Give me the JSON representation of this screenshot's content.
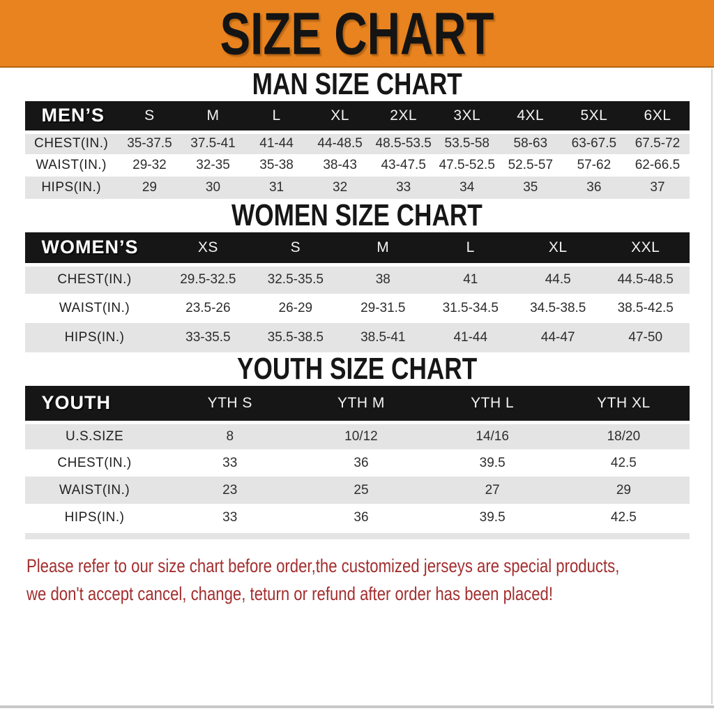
{
  "banner": {
    "title": "SIZE CHART"
  },
  "sections": [
    {
      "id": "men",
      "heading": "MAN SIZE CHART",
      "table_label": "MEN’S",
      "columns": [
        "S",
        "M",
        "L",
        "XL",
        "2XL",
        "3XL",
        "4XL",
        "5XL",
        "6XL"
      ],
      "rows": [
        {
          "label": "CHEST(IN.)",
          "values": [
            "35-37.5",
            "37.5-41",
            "41-44",
            "44-48.5",
            "48.5-53.5",
            "53.5-58",
            "58-63",
            "63-67.5",
            "67.5-72"
          ]
        },
        {
          "label": "WAIST(IN.)",
          "values": [
            "29-32",
            "32-35",
            "35-38",
            "38-43",
            "43-47.5",
            "47.5-52.5",
            "52.5-57",
            "57-62",
            "62-66.5"
          ]
        },
        {
          "label": "HIPS(IN.)",
          "values": [
            "29",
            "30",
            "31",
            "32",
            "33",
            "34",
            "35",
            "36",
            "37"
          ]
        }
      ]
    },
    {
      "id": "women",
      "heading": "WOMEN SIZE CHART",
      "table_label": "WOMEN’S",
      "columns": [
        "XS",
        "S",
        "M",
        "L",
        "XL",
        "XXL"
      ],
      "rows": [
        {
          "label": "CHEST(IN.)",
          "values": [
            "29.5-32.5",
            "32.5-35.5",
            "38",
            "41",
            "44.5",
            "44.5-48.5"
          ]
        },
        {
          "label": "WAIST(IN.)",
          "values": [
            "23.5-26",
            "26-29",
            "29-31.5",
            "31.5-34.5",
            "34.5-38.5",
            "38.5-42.5"
          ]
        },
        {
          "label": "HIPS(IN.)",
          "values": [
            "33-35.5",
            "35.5-38.5",
            "38.5-41",
            "41-44",
            "44-47",
            "47-50"
          ]
        }
      ]
    },
    {
      "id": "youth",
      "heading": "YOUTH SIZE CHART",
      "table_label": "YOUTH",
      "columns": [
        "YTH S",
        "YTH M",
        "YTH L",
        "YTH XL"
      ],
      "rows": [
        {
          "label": "U.S.SIZE",
          "values": [
            "8",
            "10/12",
            "14/16",
            "18/20"
          ]
        },
        {
          "label": "CHEST(IN.)",
          "values": [
            "33",
            "36",
            "39.5",
            "42.5"
          ]
        },
        {
          "label": "WAIST(IN.)",
          "values": [
            "23",
            "25",
            "27",
            "29"
          ]
        },
        {
          "label": "HIPS(IN.)",
          "values": [
            "33",
            "36",
            "39.5",
            "42.5"
          ]
        }
      ]
    }
  ],
  "disclaimer": {
    "line1": "Please refer to our size chart before order,the customized jerseys are special products,",
    "line2": "we don't accept cancel, change, teturn or refund after order has been placed!"
  },
  "colors": {
    "banner_bg": "#e8831f",
    "table_header_bg": "#161616",
    "row_stripe": "#e4e4e4",
    "disclaimer_red": "#a32e2e"
  }
}
